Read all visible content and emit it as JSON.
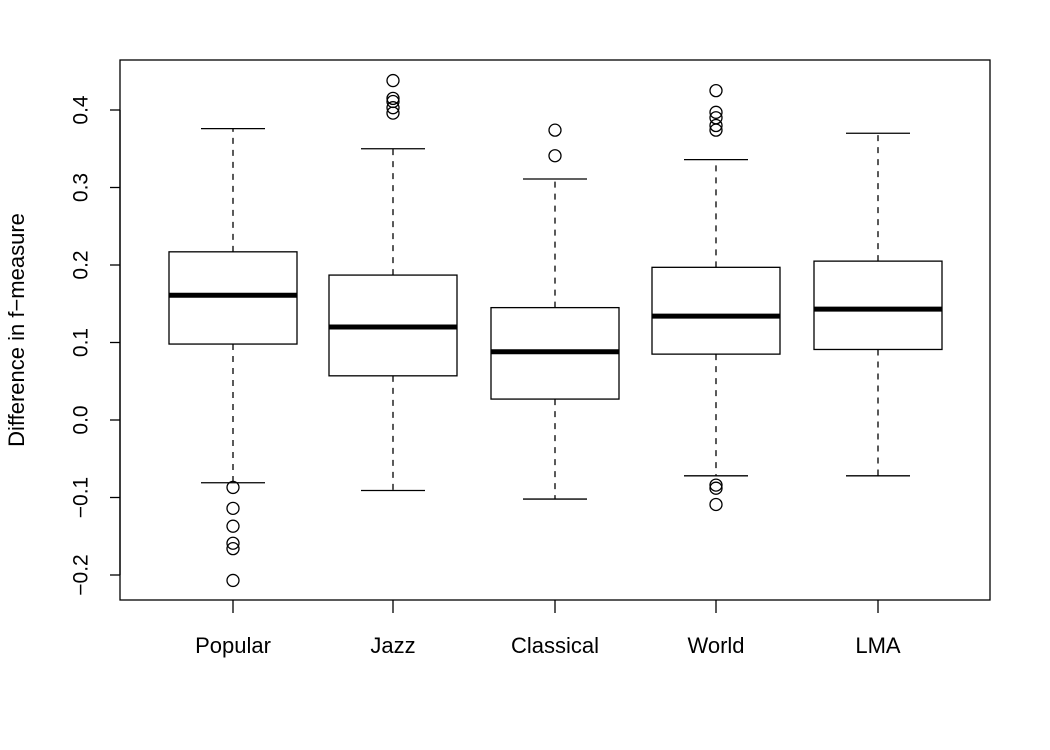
{
  "chart_data": {
    "type": "box",
    "title": "",
    "xlabel": "",
    "ylabel": "Difference in f−measure",
    "ylim": [
      -0.23,
      0.47
    ],
    "yticks": [
      -0.2,
      -0.1,
      0.0,
      0.1,
      0.2,
      0.3,
      0.4
    ],
    "ytick_labels": [
      "−0.2",
      "−0.1",
      "0.0",
      "0.1",
      "0.2",
      "0.3",
      "0.4"
    ],
    "grid": false,
    "categories": [
      "Popular",
      "Jazz",
      "Classical",
      "World",
      "LMA"
    ],
    "boxes": [
      {
        "category": "Popular",
        "whisker_low": -0.081,
        "q1": 0.098,
        "median": 0.161,
        "q3": 0.217,
        "whisker_high": 0.376,
        "outliers": [
          -0.087,
          -0.114,
          -0.137,
          -0.159,
          -0.166,
          -0.207
        ]
      },
      {
        "category": "Jazz",
        "whisker_low": -0.091,
        "q1": 0.057,
        "median": 0.12,
        "q3": 0.187,
        "whisker_high": 0.35,
        "outliers": [
          0.438,
          0.415,
          0.411,
          0.403,
          0.396
        ]
      },
      {
        "category": "Classical",
        "whisker_low": -0.102,
        "q1": 0.027,
        "median": 0.088,
        "q3": 0.145,
        "whisker_high": 0.311,
        "outliers": [
          0.374,
          0.341
        ]
      },
      {
        "category": "World",
        "whisker_low": -0.072,
        "q1": 0.085,
        "median": 0.134,
        "q3": 0.197,
        "whisker_high": 0.336,
        "outliers": [
          0.425,
          0.397,
          0.39,
          0.38,
          0.374,
          -0.084,
          -0.088,
          -0.109
        ]
      },
      {
        "category": "LMA",
        "whisker_low": -0.072,
        "q1": 0.091,
        "median": 0.143,
        "q3": 0.205,
        "whisker_high": 0.37,
        "outliers": []
      }
    ]
  }
}
